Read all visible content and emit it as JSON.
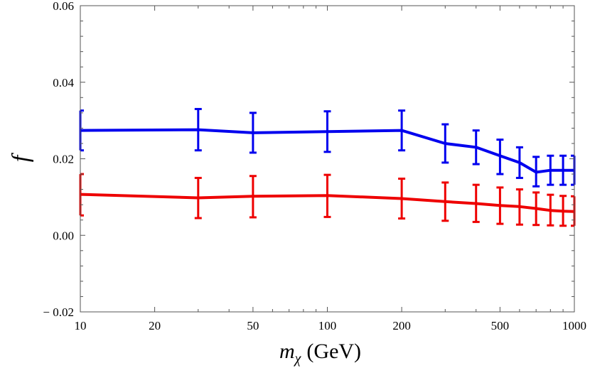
{
  "chart_data": {
    "type": "line",
    "title": "",
    "xlabel": "m_χ (GeV)",
    "xlabel_main": "m",
    "xlabel_sub": "χ",
    "xlabel_unit": "(GeV)",
    "ylabel": "f",
    "xscale": "log",
    "xlim": [
      10,
      1000
    ],
    "ylim": [
      -0.02,
      0.06
    ],
    "grid": false,
    "legend": "none",
    "xticks": [
      10,
      20,
      50,
      100,
      200,
      500,
      1000
    ],
    "xtick_labels": [
      "10",
      "20",
      "50",
      "100",
      "200",
      "500",
      "1000"
    ],
    "yticks": [
      -0.02,
      0.0,
      0.02,
      0.04,
      0.06
    ],
    "ytick_labels": [
      "− 0.02",
      "0.00",
      "0.02",
      "0.04",
      "0.06"
    ],
    "x": [
      10,
      30,
      50,
      100,
      200,
      300,
      400,
      500,
      600,
      700,
      800,
      900,
      1000
    ],
    "series": [
      {
        "color": "#0000ee",
        "values": [
          0.0274,
          0.0276,
          0.0268,
          0.0271,
          0.0274,
          0.024,
          0.023,
          0.0208,
          0.019,
          0.0165,
          0.017,
          0.017,
          0.017
        ],
        "err_lo": [
          0.0222,
          0.0222,
          0.0216,
          0.0218,
          0.0222,
          0.019,
          0.0186,
          0.016,
          0.015,
          0.0128,
          0.0132,
          0.0132,
          0.0132
        ],
        "err_hi": [
          0.0326,
          0.033,
          0.032,
          0.0324,
          0.0326,
          0.029,
          0.0274,
          0.025,
          0.023,
          0.0205,
          0.0208,
          0.0208,
          0.0208
        ]
      },
      {
        "color": "#ee0000",
        "values": [
          0.0107,
          0.0098,
          0.0102,
          0.0104,
          0.0096,
          0.0088,
          0.0083,
          0.0078,
          0.0075,
          0.007,
          0.0065,
          0.0063,
          0.0062
        ],
        "err_lo": [
          0.0052,
          0.0045,
          0.0047,
          0.0048,
          0.0044,
          0.0038,
          0.0035,
          0.003,
          0.0028,
          0.0027,
          0.0026,
          0.0025,
          0.0025
        ],
        "err_hi": [
          0.016,
          0.015,
          0.0155,
          0.0158,
          0.0148,
          0.0138,
          0.0132,
          0.0125,
          0.012,
          0.0112,
          0.0106,
          0.0103,
          0.0102
        ]
      }
    ]
  }
}
